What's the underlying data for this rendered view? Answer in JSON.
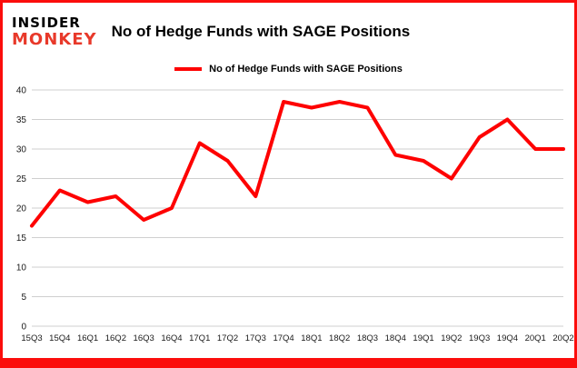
{
  "logo": {
    "line1": "INSIDER",
    "line2": "MONKEY"
  },
  "title": "No of Hedge Funds with SAGE Positions",
  "legend": "No of Hedge Funds with SAGE Positions",
  "colors": {
    "line": "#fe0000",
    "border": "#fb0d0c",
    "grid": "#cfcfcf",
    "logo_red": "#e8392a",
    "tick_text": "#1a1a1a"
  },
  "chart_data": {
    "type": "line",
    "title": "No of Hedge Funds with SAGE Positions",
    "categories": [
      "15Q3",
      "15Q4",
      "16Q1",
      "16Q2",
      "16Q3",
      "16Q4",
      "17Q1",
      "17Q2",
      "17Q3",
      "17Q4",
      "18Q1",
      "18Q2",
      "18Q3",
      "18Q4",
      "19Q1",
      "19Q2",
      "19Q3",
      "19Q4",
      "20Q1",
      "20Q2"
    ],
    "values": [
      17,
      23,
      21,
      22,
      18,
      20,
      31,
      28,
      22,
      38,
      37,
      38,
      37,
      29,
      28,
      25,
      32,
      35,
      30,
      30
    ],
    "xlabel": "",
    "ylabel": "",
    "ylim": [
      0,
      40
    ],
    "ytick_step": 5,
    "grid": true,
    "legend_position": "top",
    "line_color": "#fe0000"
  }
}
